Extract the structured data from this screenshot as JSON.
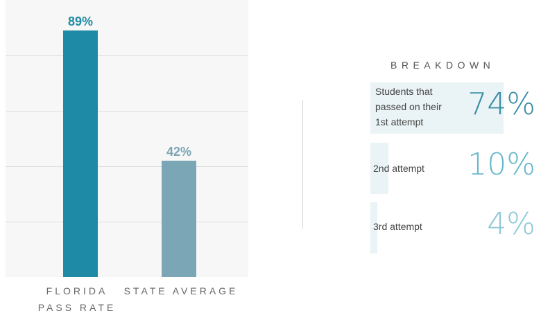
{
  "chart_data": {
    "type": "bar",
    "categories": [
      "FLORIDA PASS RATE",
      "STATE AVERAGE"
    ],
    "values": [
      89,
      42
    ],
    "value_labels": [
      "89%",
      "42%"
    ],
    "ylim": [
      0,
      100
    ],
    "grid": true,
    "colors": [
      "#1f8aa5",
      "#7ba6b5"
    ]
  },
  "labels": {
    "florida_line1": "FLORIDA",
    "florida_line2": "PASS RATE",
    "state": "STATE AVERAGE"
  },
  "breakdown": {
    "title": "BREAKDOWN",
    "items": [
      {
        "label_lines": [
          "Students that",
          "passed on their",
          "1st attempt"
        ],
        "value": 74,
        "value_label": "74%",
        "color": "#3a8da4"
      },
      {
        "label_lines": [
          "2nd attempt"
        ],
        "value": 10,
        "value_label": "10%",
        "color": "#66b7cc"
      },
      {
        "label_lines": [
          "3rd attempt"
        ],
        "value": 4,
        "value_label": "4%",
        "color": "#8fc7d6"
      }
    ]
  }
}
